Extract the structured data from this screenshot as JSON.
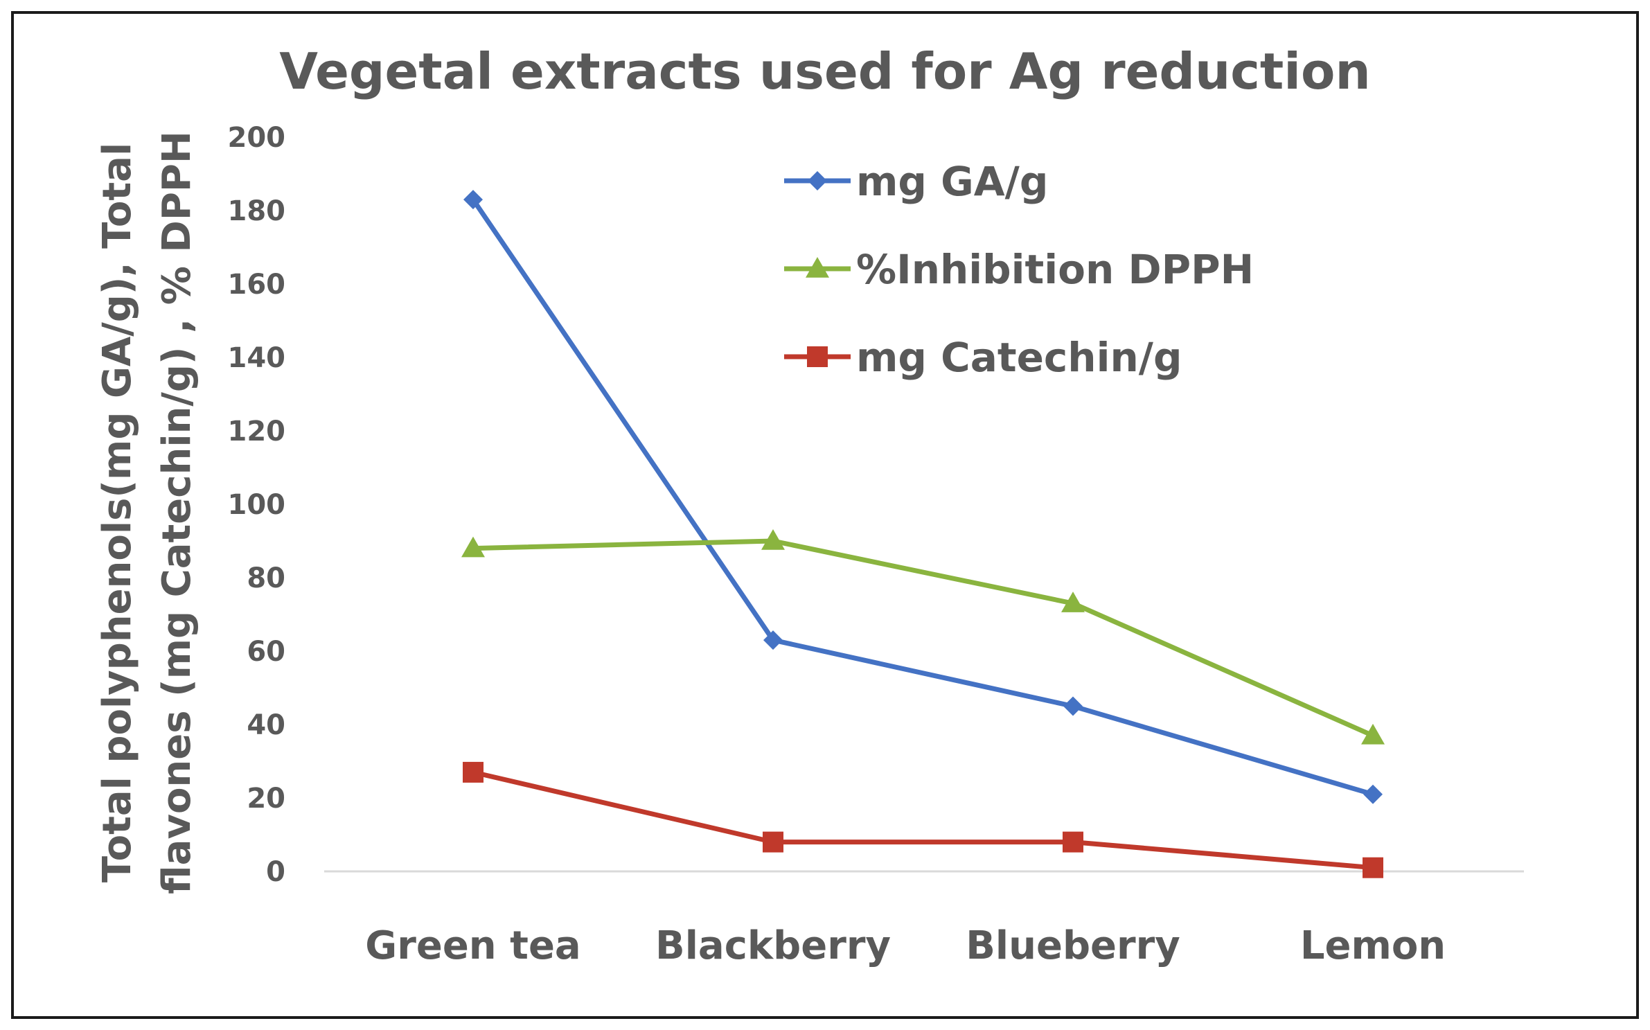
{
  "chart_data": {
    "type": "line",
    "title": "Vegetal extracts used for Ag reduction",
    "ylabel_lines": [
      "Total polyphenols(mg GA/g), Total",
      "flavones (mg Catechin/g) , % DPPH"
    ],
    "xlabel": "",
    "ylim": [
      0,
      200
    ],
    "yticks": [
      0,
      20,
      40,
      60,
      80,
      100,
      120,
      140,
      160,
      180,
      200
    ],
    "categories": [
      "Green tea",
      "Blackberry",
      "Blueberry",
      "Lemon"
    ],
    "legend_position": "top-right",
    "grid": false,
    "series": [
      {
        "name": "mg GA/g",
        "values": [
          183,
          63,
          45,
          21
        ],
        "color": "#4472C4",
        "marker": "diamond"
      },
      {
        "name": "%Inhibition DPPH",
        "values": [
          88,
          90,
          73,
          37
        ],
        "color": "#8AB43F",
        "marker": "triangle"
      },
      {
        "name": "mg Catechin/g",
        "values": [
          27,
          8,
          8,
          1
        ],
        "color": "#C0392B",
        "marker": "square"
      }
    ]
  }
}
